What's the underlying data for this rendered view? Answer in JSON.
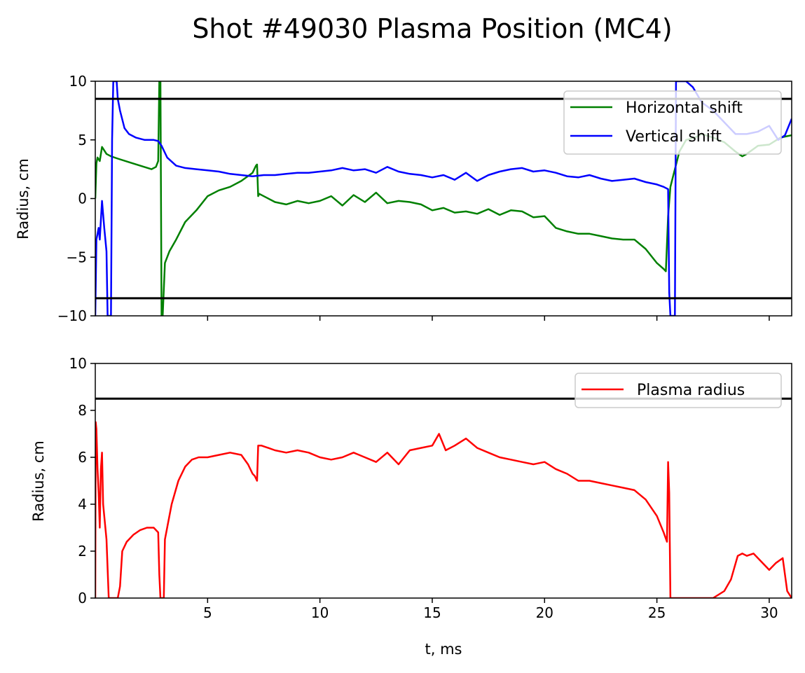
{
  "title": "Shot #49030 Plasma Position (MC4)",
  "colors": {
    "horizontal": "#008000",
    "vertical": "#0000ff",
    "radius": "#ff0000",
    "limit": "#000000"
  },
  "chart_data": [
    {
      "type": "line",
      "name": "shift",
      "ylabel": "Radius, cm",
      "xlabel": "",
      "xlim": [
        0,
        31
      ],
      "ylim": [
        -10,
        10
      ],
      "xticks": [
        5,
        10,
        15,
        20,
        25,
        30
      ],
      "yticks": [
        -10,
        -5,
        0,
        5,
        10
      ],
      "ytick_labels": [
        "−10",
        "−5",
        "0",
        "5",
        "10"
      ],
      "show_xtick_labels": false,
      "grid": false,
      "legend_position": "top-right",
      "hlines": [
        8.5,
        -8.5
      ],
      "series": [
        {
          "name": "Horizontal shift",
          "color": "#008000",
          "x": [
            0,
            0.05,
            0.1,
            0.2,
            0.3,
            0.5,
            0.7,
            1.0,
            1.5,
            2.0,
            2.5,
            2.7,
            2.8,
            2.85,
            2.9,
            2.95,
            3.0,
            3.1,
            3.3,
            3.6,
            4.0,
            4.5,
            5.0,
            5.5,
            6.0,
            6.5,
            7.0,
            7.15,
            7.2,
            7.25,
            7.3,
            7.6,
            8.0,
            8.5,
            9.0,
            9.5,
            10.0,
            10.5,
            11.0,
            11.5,
            12.0,
            12.5,
            13.0,
            13.5,
            14.0,
            14.5,
            15.0,
            15.5,
            16.0,
            16.5,
            17.0,
            17.5,
            18.0,
            18.5,
            19.0,
            19.5,
            20.0,
            20.5,
            21.0,
            21.5,
            22.0,
            22.5,
            23.0,
            23.5,
            24.0,
            24.5,
            25.0,
            25.3,
            25.4,
            25.5,
            25.6,
            25.8,
            26.0,
            26.3,
            26.7,
            27.0,
            27.5,
            28.0,
            28.5,
            28.8,
            29.0,
            29.5,
            30.0,
            30.5,
            31.0
          ],
          "values": [
            0,
            3.0,
            3.5,
            3.2,
            4.4,
            3.8,
            3.6,
            3.4,
            3.1,
            2.8,
            2.5,
            2.7,
            3.2,
            10,
            10,
            -10,
            -10,
            -5.5,
            -4.5,
            -3.5,
            -2.0,
            -1.0,
            0.2,
            0.7,
            1.0,
            1.5,
            2.2,
            2.8,
            2.9,
            0.2,
            0.4,
            0.1,
            -0.3,
            -0.5,
            -0.2,
            -0.4,
            -0.2,
            0.2,
            -0.6,
            0.3,
            -0.3,
            0.5,
            -0.4,
            -0.2,
            -0.3,
            -0.5,
            -1.0,
            -0.8,
            -1.2,
            -1.1,
            -1.3,
            -0.9,
            -1.4,
            -1.0,
            -1.1,
            -1.6,
            -1.5,
            -2.5,
            -2.8,
            -3.0,
            -3.0,
            -3.2,
            -3.4,
            -3.5,
            -3.5,
            -4.3,
            -5.5,
            -6.0,
            -6.2,
            -1.5,
            1.0,
            2.5,
            4.0,
            5.0,
            5.2,
            5.5,
            5.2,
            4.8,
            4.0,
            3.6,
            3.8,
            4.5,
            4.6,
            5.2,
            5.4
          ]
        },
        {
          "name": "Vertical shift",
          "color": "#0000ff",
          "x": [
            0,
            0.05,
            0.1,
            0.15,
            0.2,
            0.3,
            0.4,
            0.5,
            0.55,
            0.6,
            0.65,
            0.7,
            0.75,
            0.8,
            0.85,
            0.9,
            0.95,
            1.0,
            1.1,
            1.3,
            1.5,
            1.8,
            2.2,
            2.6,
            2.8,
            2.95,
            3.2,
            3.6,
            4.0,
            4.5,
            5.0,
            5.5,
            6.0,
            6.5,
            7.0,
            7.5,
            8.0,
            8.5,
            9.0,
            9.5,
            10.0,
            10.5,
            11.0,
            11.5,
            12.0,
            12.5,
            13.0,
            13.5,
            14.0,
            14.5,
            15.0,
            15.5,
            16.0,
            16.5,
            17.0,
            17.5,
            18.0,
            18.5,
            19.0,
            19.5,
            20.0,
            20.5,
            21.0,
            21.5,
            22.0,
            22.5,
            23.0,
            23.5,
            24.0,
            24.5,
            25.0,
            25.3,
            25.5,
            25.55,
            25.6,
            25.65,
            25.7,
            25.75,
            25.8,
            25.85,
            25.9,
            26.0,
            26.3,
            26.6,
            27.0,
            27.5,
            28.0,
            28.5,
            29.0,
            29.5,
            30.0,
            30.4,
            30.7,
            31.0
          ],
          "values": [
            -10,
            -3.5,
            -3.0,
            -2.5,
            -3.5,
            -0.2,
            -2.5,
            -4.5,
            -10,
            -10,
            -10,
            -10,
            5,
            10,
            10,
            10,
            10,
            8.5,
            7.5,
            6.0,
            5.5,
            5.2,
            5.0,
            5.0,
            4.9,
            4.5,
            3.5,
            2.8,
            2.6,
            2.5,
            2.4,
            2.3,
            2.1,
            2.0,
            1.9,
            2.0,
            2.0,
            2.1,
            2.2,
            2.2,
            2.3,
            2.4,
            2.6,
            2.4,
            2.5,
            2.2,
            2.7,
            2.3,
            2.1,
            2.0,
            1.8,
            2.0,
            1.6,
            2.2,
            1.5,
            2.0,
            2.3,
            2.5,
            2.6,
            2.3,
            2.4,
            2.2,
            1.9,
            1.8,
            2.0,
            1.7,
            1.5,
            1.6,
            1.7,
            1.4,
            1.2,
            1.0,
            0.8,
            -8,
            -10,
            -10,
            -10,
            -10,
            -10,
            10,
            10,
            10,
            10,
            9.5,
            8.2,
            7.5,
            6.5,
            5.5,
            5.5,
            5.7,
            6.2,
            5.0,
            5.4,
            6.8
          ]
        }
      ]
    },
    {
      "type": "line",
      "name": "radius",
      "ylabel": "Radius, cm",
      "xlabel": "t, ms",
      "xlim": [
        0,
        31
      ],
      "ylim": [
        0,
        10
      ],
      "xticks": [
        5,
        10,
        15,
        20,
        25,
        30
      ],
      "yticks": [
        0,
        2,
        4,
        6,
        8,
        10
      ],
      "ytick_labels": [
        "0",
        "2",
        "4",
        "6",
        "8",
        "10"
      ],
      "show_xtick_labels": true,
      "grid": false,
      "legend_position": "top-right",
      "hlines": [
        8.5
      ],
      "series": [
        {
          "name": "Plasma radius",
          "color": "#ff0000",
          "x": [
            0,
            0.02,
            0.05,
            0.1,
            0.15,
            0.2,
            0.25,
            0.3,
            0.35,
            0.4,
            0.5,
            0.6,
            0.7,
            0.8,
            1.0,
            1.1,
            1.2,
            1.4,
            1.7,
            2.0,
            2.3,
            2.6,
            2.8,
            2.85,
            2.9,
            3.0,
            3.05,
            3.1,
            3.2,
            3.4,
            3.7,
            4.0,
            4.3,
            4.6,
            5.0,
            5.5,
            6.0,
            6.5,
            6.8,
            7.0,
            7.1,
            7.2,
            7.25,
            7.4,
            7.7,
            8.0,
            8.5,
            9.0,
            9.5,
            10.0,
            10.5,
            11.0,
            11.5,
            12.0,
            12.5,
            13.0,
            13.5,
            14.0,
            14.5,
            15.0,
            15.3,
            15.6,
            16.0,
            16.5,
            17.0,
            17.5,
            18.0,
            18.5,
            19.0,
            19.5,
            20.0,
            20.5,
            21.0,
            21.5,
            22.0,
            22.5,
            23.0,
            23.5,
            24.0,
            24.5,
            25.0,
            25.3,
            25.45,
            25.5,
            25.55,
            25.6,
            25.65,
            26.0,
            27.0,
            27.5,
            28.0,
            28.3,
            28.6,
            28.8,
            29.0,
            29.3,
            29.6,
            30.0,
            30.3,
            30.6,
            30.8,
            31.0
          ],
          "values": [
            0,
            7.5,
            7.2,
            5.5,
            4.5,
            3.0,
            5.5,
            6.2,
            4.0,
            3.5,
            2.5,
            0,
            0,
            0,
            0,
            0.5,
            2.0,
            2.4,
            2.7,
            2.9,
            3.0,
            3.0,
            2.8,
            1.0,
            0,
            0,
            0,
            2.5,
            3.0,
            4.0,
            5.0,
            5.6,
            5.9,
            6.0,
            6.0,
            6.1,
            6.2,
            6.1,
            5.7,
            5.3,
            5.2,
            5.0,
            6.5,
            6.5,
            6.4,
            6.3,
            6.2,
            6.3,
            6.2,
            6.0,
            5.9,
            6.0,
            6.2,
            6.0,
            5.8,
            6.2,
            5.7,
            6.3,
            6.4,
            6.5,
            7.0,
            6.3,
            6.5,
            6.8,
            6.4,
            6.2,
            6.0,
            5.9,
            5.8,
            5.7,
            5.8,
            5.5,
            5.3,
            5.0,
            5.0,
            4.9,
            4.8,
            4.7,
            4.6,
            4.2,
            3.5,
            2.8,
            2.4,
            5.8,
            4.5,
            0,
            0,
            0,
            0,
            0,
            0.3,
            0.8,
            1.8,
            1.9,
            1.8,
            1.9,
            1.6,
            1.2,
            1.5,
            1.7,
            0.3,
            0
          ]
        }
      ]
    }
  ]
}
